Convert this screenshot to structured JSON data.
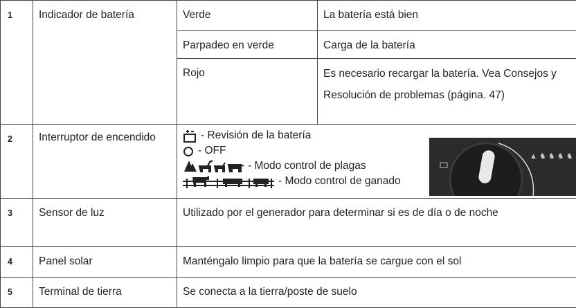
{
  "table": {
    "rows": [
      {
        "number": "1",
        "label": "Indicador de batería",
        "states": [
          {
            "color": "Verde",
            "description": "La batería está bien"
          },
          {
            "color": "Parpadeo en verde",
            "description": "Carga de la batería"
          },
          {
            "color": "Rojo",
            "description": "Es necesario recargar la batería. Vea Consejos y Resolución de problemas (página. 47)"
          }
        ]
      },
      {
        "number": "2",
        "label": "Interruptor de encendido",
        "modes": [
          "- Revisión de la batería",
          "- OFF",
          "- Modo control de plagas",
          "- Modo control de ganado"
        ]
      },
      {
        "number": "3",
        "label": "Sensor de luz",
        "description": "Utilizado por el generador para determinar si es de día o de noche"
      },
      {
        "number": "4",
        "label": "Panel solar",
        "description": "Manténgalo limpio para que la batería se cargue con el sol"
      },
      {
        "number": "5",
        "label": "Terminal de tierra",
        "description": "Se conecta a la tierra/poste de suelo"
      }
    ]
  }
}
